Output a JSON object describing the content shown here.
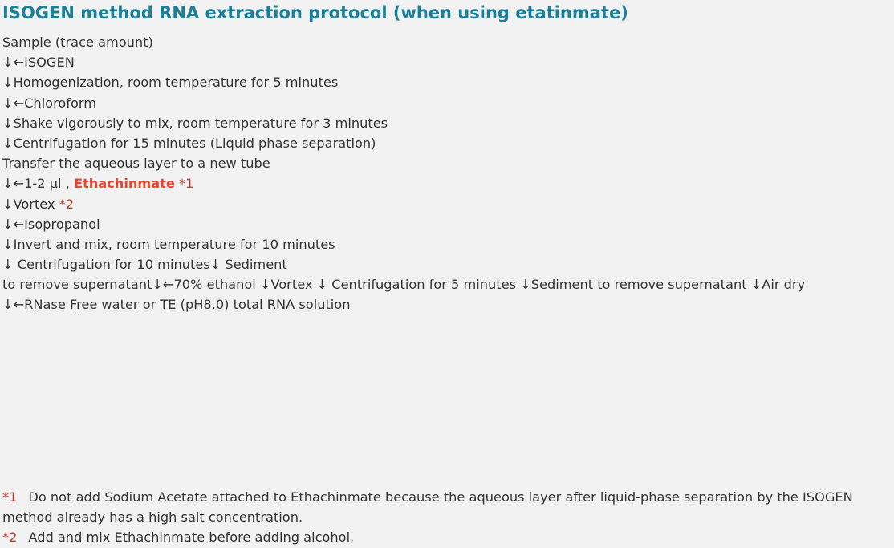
{
  "title": "ISOGEN method RNA extraction protocol (when using etatinmate)",
  "steps": {
    "s1": "Sample (trace amount)",
    "s2": "↓←ISOGEN",
    "s3": "↓Homogenization, room temperature for 5 minutes",
    "s4": "↓←Chloroform",
    "s5": "↓Shake vigorously to mix, room temperature for 3 minutes",
    "s6": "↓Centrifugation for 15 minutes (Liquid phase separation)",
    "s7": "Transfer the aqueous layer to a new tube",
    "s8_prefix": "↓←1-2 μl , ",
    "s8_reagent": "Ethachinmate",
    "s8_mark": " *1",
    "s9_prefix": "↓Vortex ",
    "s9_mark": "*2",
    "s10": "↓←Isopropanol",
    "s11": "↓Invert and mix, room temperature for 10 minutes",
    "s12": "↓ Centrifugation for 10 minutes↓ Sediment",
    "s13": "to remove supernatant↓←70% ethanol ↓Vortex ↓ Centrifugation for 5 minutes ↓Sediment to remove supernatant ↓Air dry",
    "s14": "↓←RNase Free water or TE (pH8.0) total RNA solution"
  },
  "notes": [
    {
      "mark": "*1",
      "text": "Do not add Sodium Acetate attached to Ethachinmate because the aqueous layer after liquid-phase separation by the ISOGEN method already has a high salt concentration."
    },
    {
      "mark": "*2",
      "text": "Add and mix Ethachinmate before adding alcohol."
    }
  ],
  "colors": {
    "title": "#1a7f98",
    "highlight": "#e8432f",
    "footnote_mark": "#c0392b",
    "body_text": "#333333",
    "background": "#f2f2f2"
  }
}
